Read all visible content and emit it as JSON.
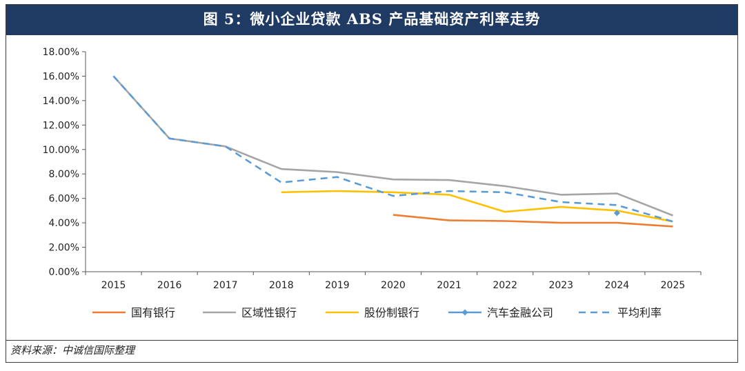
{
  "header": {
    "title": "图 5：微小企业贷款 ABS 产品基础资产利率走势"
  },
  "footer": {
    "source": "资料来源：中诚信国际整理"
  },
  "chart_data": {
    "type": "line",
    "title": "图 5：微小企业贷款 ABS 产品基础资产利率走势",
    "xlabel": "",
    "ylabel": "",
    "categories": [
      "2015",
      "2016",
      "2017",
      "2018",
      "2019",
      "2020",
      "2021",
      "2022",
      "2023",
      "2024",
      "2025"
    ],
    "y_ticks": [
      "0.00%",
      "2.00%",
      "4.00%",
      "6.00%",
      "8.00%",
      "10.00%",
      "12.00%",
      "14.00%",
      "16.00%",
      "18.00%"
    ],
    "ylim": [
      0,
      18
    ],
    "grid": false,
    "legend_position": "bottom",
    "series": [
      {
        "name": "国有银行",
        "color": "#ed7d31",
        "style": "solid",
        "marker": "none",
        "values": [
          null,
          null,
          null,
          null,
          null,
          4.65,
          4.2,
          4.15,
          4.0,
          4.0,
          3.7
        ]
      },
      {
        "name": "区域性银行",
        "color": "#a5a5a5",
        "style": "solid",
        "marker": "none",
        "values": [
          16.0,
          10.9,
          10.25,
          8.4,
          8.15,
          7.55,
          7.5,
          7.0,
          6.3,
          6.4,
          4.6
        ]
      },
      {
        "name": "股份制银行",
        "color": "#ffc000",
        "style": "solid",
        "marker": "none",
        "values": [
          null,
          null,
          null,
          6.5,
          6.6,
          6.5,
          6.3,
          4.9,
          5.3,
          5.0,
          4.1
        ]
      },
      {
        "name": "汽车金融公司",
        "color": "#5b9bd5",
        "style": "solid",
        "marker": "diamond",
        "values": [
          null,
          null,
          null,
          null,
          null,
          null,
          null,
          null,
          null,
          4.8,
          null
        ]
      },
      {
        "name": "平均利率",
        "color": "#5b9bd5",
        "style": "dashed",
        "marker": "none",
        "values": [
          16.0,
          10.9,
          10.25,
          7.3,
          7.75,
          6.2,
          6.6,
          6.5,
          5.7,
          5.45,
          4.1
        ]
      }
    ]
  }
}
